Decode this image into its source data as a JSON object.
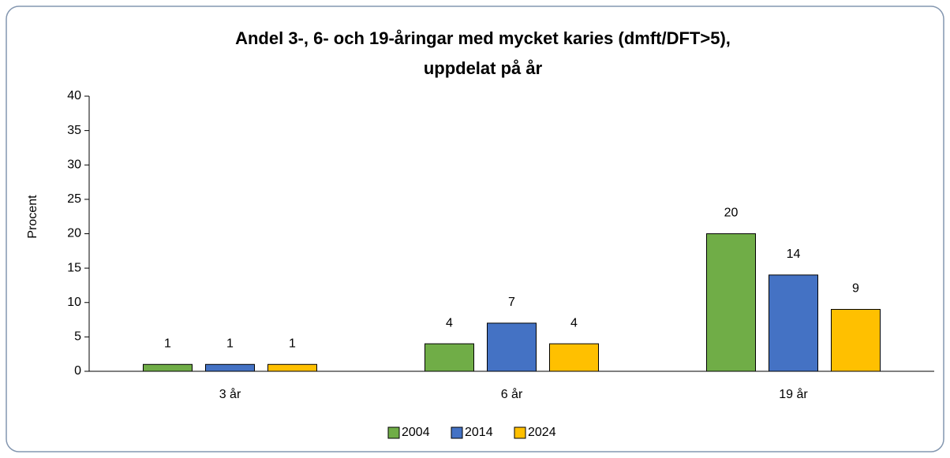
{
  "chart_data": {
    "type": "bar",
    "title": [
      "Andel 3-, 6- och 19-åringar med mycket karies (dmft/DFT>5),",
      "uppdelat på år"
    ],
    "y_label": "Procent",
    "categories": [
      "3 år",
      "6 år",
      "19 år"
    ],
    "series": [
      {
        "name": "2004",
        "color": "#70ad47",
        "values": [
          1,
          4,
          20
        ]
      },
      {
        "name": "2014",
        "color": "#4472c4",
        "values": [
          1,
          7,
          14
        ]
      },
      {
        "name": "2024",
        "color": "#ffc000",
        "values": [
          1,
          4,
          9
        ]
      }
    ],
    "ylim": [
      0,
      40
    ],
    "yticks": [
      0,
      5,
      10,
      15,
      20,
      25,
      30,
      35,
      40
    ],
    "legend": "bottom"
  }
}
